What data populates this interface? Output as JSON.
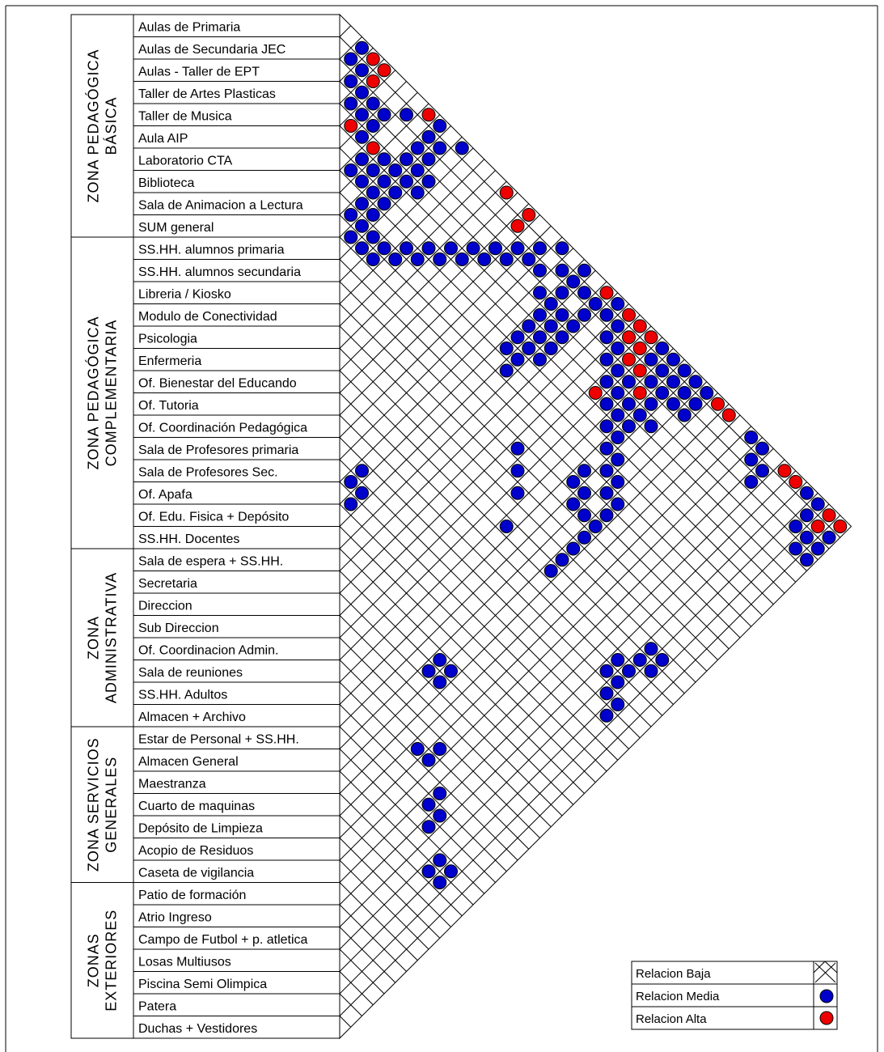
{
  "zones": [
    {
      "lines": [
        "ZONA PEDAGÓGICA",
        "BÁSICA"
      ],
      "rows": 10
    },
    {
      "lines": [
        "ZONA PEDAGÓGICA",
        "COMPLEMENTARIA"
      ],
      "rows": 14
    },
    {
      "lines": [
        "ZONA",
        "ADMINISTRATIVA"
      ],
      "rows": 8
    },
    {
      "lines": [
        "ZONA SERVICIOS",
        "GENERALES"
      ],
      "rows": 7
    },
    {
      "lines": [
        "ZONAS",
        "EXTERIORES"
      ],
      "rows": 7
    }
  ],
  "spaces": [
    "Aulas de Primaria",
    "Aulas de Secundaria JEC",
    "Aulas - Taller de EPT",
    "Taller de Artes Plasticas",
    "Taller de Musica",
    "Aula AIP",
    "Laboratorio CTA",
    "Biblioteca",
    "Sala de Animacion a Lectura",
    "SUM general",
    "SS.HH. alumnos primaria",
    "SS.HH. alumnos secundaria",
    "Libreria / Kiosko",
    "Modulo de Conectividad",
    "Psicologia",
    "Enfermeria",
    "Of. Bienestar del Educando",
    "Of. Tutoria",
    "Of. Coordinación Pedagógica",
    "Sala de Profesores primaria",
    "Sala de Profesores Sec.",
    "Of. Apafa",
    "Of. Edu. Fisica + Depósito",
    "SS.HH. Docentes",
    "Sala de espera + SS.HH.",
    "Secretaria",
    "Direccion",
    "Sub Direccion",
    "Of. Coordinacion Admin.",
    "Sala de reuniones",
    "SS.HH. Adultos",
    "Almacen + Archivo",
    "Estar de Personal + SS.HH.",
    "Almacen General",
    "Maestranza",
    "Cuarto de maquinas",
    "Depósito de Limpieza",
    "Acopio de Residuos",
    "Caseta de vigilancia",
    "Patio de formación",
    "Atrio Ingreso",
    "Campo de Futbol + p. atletica",
    "Losas Multiusos",
    "Piscina Semi Olimpica",
    "Patera",
    "Duchas + Vestidores"
  ],
  "relations": {
    "media": [
      [
        0,
        2
      ],
      [
        1,
        2
      ],
      [
        1,
        3
      ],
      [
        2,
        3
      ],
      [
        2,
        4
      ],
      [
        3,
        4
      ],
      [
        3,
        5
      ],
      [
        2,
        5
      ],
      [
        2,
        6
      ],
      [
        3,
        6
      ],
      [
        4,
        6
      ],
      [
        1,
        7
      ],
      [
        6,
        7
      ],
      [
        5,
        8
      ],
      [
        6,
        8
      ],
      [
        6,
        9
      ],
      [
        7,
        9
      ],
      [
        8,
        9
      ],
      [
        7,
        10
      ],
      [
        8,
        10
      ],
      [
        9,
        10
      ],
      [
        0,
        8
      ],
      [
        0,
        9
      ],
      [
        1,
        9
      ],
      [
        1,
        10
      ],
      [
        2,
        10
      ],
      [
        3,
        10
      ],
      [
        4,
        10
      ],
      [
        5,
        10
      ],
      [
        2,
        9
      ],
      [
        3,
        9
      ],
      [
        4,
        9
      ],
      [
        5,
        9
      ],
      [
        4,
        8
      ],
      [
        5,
        7
      ],
      [
        6,
        10
      ],
      [
        8,
        11
      ],
      [
        0,
        11
      ],
      [
        3,
        11
      ],
      [
        4,
        11
      ],
      [
        9,
        11
      ],
      [
        9,
        12
      ],
      [
        8,
        12
      ],
      [
        8,
        13
      ],
      [
        7,
        13
      ],
      [
        7,
        14
      ],
      [
        6,
        14
      ],
      [
        6,
        15
      ],
      [
        5,
        15
      ],
      [
        5,
        16
      ],
      [
        4,
        16
      ],
      [
        4,
        17
      ],
      [
        3,
        17
      ],
      [
        3,
        18
      ],
      [
        2,
        18
      ],
      [
        2,
        19
      ],
      [
        1,
        19
      ],
      [
        0,
        20
      ],
      [
        0,
        22
      ],
      [
        1,
        21
      ],
      [
        1,
        23
      ],
      [
        2,
        20
      ],
      [
        2,
        22
      ],
      [
        2,
        24
      ],
      [
        3,
        21
      ],
      [
        3,
        23
      ],
      [
        1,
        22
      ],
      [
        1,
        24
      ],
      [
        3,
        22
      ],
      [
        3,
        24
      ],
      [
        4,
        22
      ],
      [
        4,
        23
      ],
      [
        4,
        24
      ],
      [
        5,
        23
      ],
      [
        5,
        24
      ],
      [
        6,
        24
      ],
      [
        1,
        25
      ],
      [
        0,
        25
      ],
      [
        1,
        26
      ],
      [
        2,
        26
      ],
      [
        2,
        27
      ],
      [
        3,
        27
      ],
      [
        3,
        28
      ],
      [
        4,
        28
      ],
      [
        4,
        29
      ],
      [
        5,
        29
      ],
      [
        6,
        30
      ],
      [
        6,
        31
      ],
      [
        7,
        31
      ],
      [
        7,
        32
      ],
      [
        8,
        32
      ],
      [
        8,
        33
      ],
      [
        9,
        33
      ],
      [
        9,
        34
      ],
      [
        10,
        34
      ],
      [
        11,
        33
      ],
      [
        11,
        34
      ],
      [
        12,
        34
      ],
      [
        13,
        34
      ],
      [
        14,
        34
      ],
      [
        15,
        34
      ],
      [
        19,
        21
      ],
      [
        20,
        21
      ],
      [
        20,
        22
      ],
      [
        21,
        22
      ],
      [
        15,
        30
      ],
      [
        13,
        29
      ],
      [
        12,
        28
      ],
      [
        11,
        27
      ],
      [
        30,
        39
      ],
      [
        31,
        39
      ],
      [
        31,
        40
      ],
      [
        32,
        40
      ],
      [
        24,
        33
      ],
      [
        25,
        33
      ],
      [
        24,
        34
      ],
      [
        25,
        34
      ],
      [
        1,
        26
      ],
      [
        6,
        22
      ],
      [
        7,
        23
      ],
      [
        7,
        22
      ],
      [
        5,
        22
      ],
      [
        6,
        23
      ],
      [
        8,
        23
      ],
      [
        2,
        28
      ],
      [
        3,
        29
      ],
      [
        10,
        32
      ],
      [
        9,
        31
      ],
      [
        10,
        31
      ],
      [
        11,
        32
      ],
      [
        0,
        32
      ],
      [
        1,
        33
      ],
      [
        0,
        33
      ],
      [
        1,
        32
      ],
      [
        0,
        31
      ],
      [
        1,
        31
      ],
      [
        2,
        31
      ],
      [
        2,
        32
      ],
      [
        2,
        33
      ],
      [
        2,
        30
      ],
      [
        3,
        30
      ],
      [
        1,
        30
      ],
      [
        0,
        30
      ],
      [
        0,
        29
      ],
      [
        1,
        29
      ],
      [
        1,
        28
      ],
      [
        1,
        27
      ],
      [
        0,
        27
      ],
      [
        0,
        26
      ],
      [
        4,
        32
      ],
      [
        5,
        31
      ],
      [
        3,
        31
      ],
      [
        4,
        30
      ],
      [
        4,
        31
      ],
      [
        5,
        30
      ],
      [
        16,
        41
      ],
      [
        17,
        41
      ],
      [
        16,
        42
      ],
      [
        17,
        42
      ],
      [
        18,
        42
      ],
      [
        18,
        43
      ],
      [
        19,
        43
      ],
      [
        29,
        36
      ],
      [
        29,
        37
      ],
      [
        28,
        37
      ],
      [
        33,
        42
      ],
      [
        34,
        42
      ],
      [
        33,
        43
      ],
      [
        34,
        43
      ],
      [
        0,
        38
      ],
      [
        1,
        38
      ],
      [
        1,
        39
      ],
      [
        2,
        39
      ],
      [
        0,
        37
      ],
      [
        14,
        42
      ],
      [
        15,
        42
      ],
      [
        14,
        43
      ],
      [
        15,
        43
      ],
      [
        1,
        44
      ],
      [
        0,
        44
      ],
      [
        1,
        45
      ],
      [
        2,
        45
      ],
      [
        0,
        43
      ],
      [
        1,
        43
      ],
      [
        2,
        44
      ],
      [
        3,
        44
      ],
      [
        2,
        43
      ],
      [
        3,
        45
      ],
      [
        0,
        42
      ]
    ],
    "alta": [
      [
        0,
        3
      ],
      [
        0,
        4
      ],
      [
        1,
        4
      ],
      [
        4,
        5
      ],
      [
        4,
        7
      ],
      [
        0,
        8
      ],
      [
        0,
        15
      ],
      [
        1,
        17
      ],
      [
        0,
        17
      ],
      [
        0,
        24
      ],
      [
        0,
        26
      ],
      [
        0,
        27
      ],
      [
        1,
        27
      ],
      [
        1,
        28
      ],
      [
        0,
        28
      ],
      [
        2,
        28
      ],
      [
        5,
        28
      ],
      [
        2,
        29
      ],
      [
        3,
        30
      ],
      [
        0,
        34
      ],
      [
        0,
        35
      ],
      [
        0,
        40
      ],
      [
        0,
        41
      ],
      [
        0,
        44
      ],
      [
        1,
        44
      ],
      [
        0,
        45
      ]
    ]
  },
  "legend": {
    "baja": "Relacion Baja",
    "media": "Relacion Media",
    "alta": "Relacion Alta"
  },
  "colors": {
    "media": "#0000cc",
    "alta": "#ee0000",
    "line": "#000000"
  }
}
